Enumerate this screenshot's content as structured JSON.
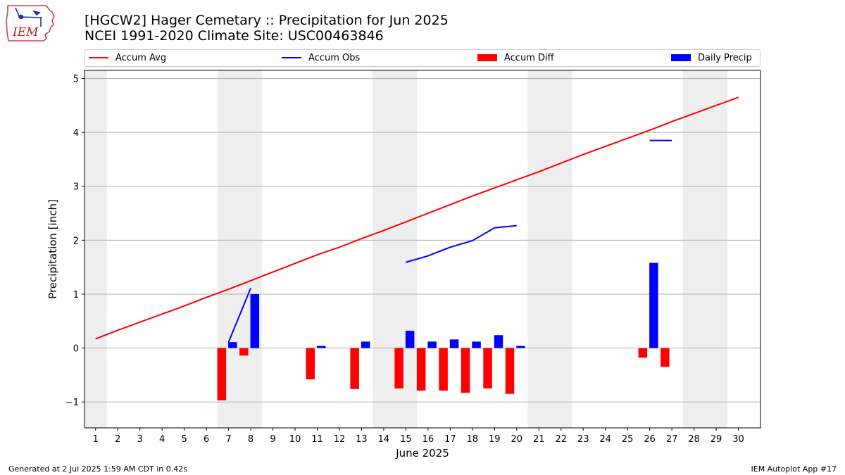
{
  "header": {
    "title_line1": "[HGCW2] Hager Cemetary :: Precipitation for Jun 2025",
    "title_line2": "NCEI 1991-2020 Climate Site: USC00463846"
  },
  "logo": {
    "text": "IEM",
    "icon": "iowa-state-outline-icon"
  },
  "footer": {
    "left": "Generated at 2 Jul 2025 1:59 AM CDT in 0.42s",
    "right": "IEM Autoplot App #17"
  },
  "chart_data": {
    "type": "bar",
    "xlabel": "June 2025",
    "ylabel": "Precipitation [inch]",
    "xlim": [
      0.5,
      31
    ],
    "ylim": [
      -1.48,
      5.15
    ],
    "yticks": [
      -1,
      0,
      1,
      2,
      3,
      4,
      5
    ],
    "ytick_labels": [
      "−1",
      "0",
      "1",
      "2",
      "3",
      "4",
      "5"
    ],
    "days": [
      1,
      2,
      3,
      4,
      5,
      6,
      7,
      8,
      9,
      10,
      11,
      12,
      13,
      14,
      15,
      16,
      17,
      18,
      19,
      20,
      21,
      22,
      23,
      24,
      25,
      26,
      27,
      28,
      29,
      30
    ],
    "weekend_bands": [
      [
        0.5,
        1.5
      ],
      [
        6.5,
        8.5
      ],
      [
        13.5,
        15.5
      ],
      [
        20.5,
        22.5
      ],
      [
        27.5,
        29.5
      ]
    ],
    "grid": "horizontal",
    "legend": {
      "placement": "top",
      "entries": [
        {
          "label": "Accum Avg",
          "kind": "line",
          "color": "#ff0000"
        },
        {
          "label": "Accum Obs",
          "kind": "line",
          "color": "#0000ff"
        },
        {
          "label": "Accum Diff",
          "kind": "bar",
          "color": "#ff0000"
        },
        {
          "label": "Daily Precip",
          "kind": "bar",
          "color": "#0000ff"
        }
      ]
    },
    "series": [
      {
        "name": "Accum Avg",
        "kind": "line",
        "color": "#ff0000",
        "x": [
          1,
          2,
          3,
          4,
          5,
          6,
          7,
          8,
          9,
          10,
          11,
          12,
          13,
          14,
          15,
          16,
          17,
          18,
          19,
          20,
          21,
          22,
          23,
          24,
          25,
          26,
          27,
          28,
          29,
          30
        ],
        "values": [
          0.17,
          0.33,
          0.48,
          0.63,
          0.78,
          0.94,
          1.09,
          1.25,
          1.41,
          1.57,
          1.73,
          1.87,
          2.03,
          2.18,
          2.34,
          2.5,
          2.66,
          2.82,
          2.97,
          3.12,
          3.27,
          3.43,
          3.59,
          3.74,
          3.89,
          4.04,
          4.2,
          4.35,
          4.5,
          4.65
        ]
      },
      {
        "name": "Accum Obs",
        "kind": "line",
        "color": "#0000ff",
        "segments": [
          {
            "x": [
              7,
              8
            ],
            "values": [
              0.11,
              1.11
            ]
          },
          {
            "x": [
              15,
              16,
              17,
              18,
              19,
              20
            ],
            "values": [
              1.59,
              1.71,
              1.87,
              1.99,
              2.23,
              2.27
            ]
          },
          {
            "x": [
              26,
              27
            ],
            "values": [
              3.85,
              3.85
            ]
          }
        ]
      },
      {
        "name": "Accum Diff",
        "kind": "bar",
        "color": "#ff0000",
        "x": [
          7,
          8,
          11,
          13,
          15,
          16,
          17,
          18,
          19,
          20,
          26,
          27
        ],
        "values": [
          -0.97,
          -0.14,
          -0.58,
          -0.76,
          -0.75,
          -0.79,
          -0.79,
          -0.83,
          -0.75,
          -0.85,
          -0.18,
          -0.35
        ]
      },
      {
        "name": "Daily Precip",
        "kind": "bar",
        "color": "#0000ff",
        "x": [
          7,
          8,
          11,
          13,
          15,
          16,
          17,
          18,
          19,
          20,
          26,
          27
        ],
        "values": [
          0.11,
          1.0,
          0.04,
          0.12,
          0.32,
          0.12,
          0.16,
          0.12,
          0.24,
          0.04,
          1.58,
          0.0
        ]
      }
    ]
  }
}
